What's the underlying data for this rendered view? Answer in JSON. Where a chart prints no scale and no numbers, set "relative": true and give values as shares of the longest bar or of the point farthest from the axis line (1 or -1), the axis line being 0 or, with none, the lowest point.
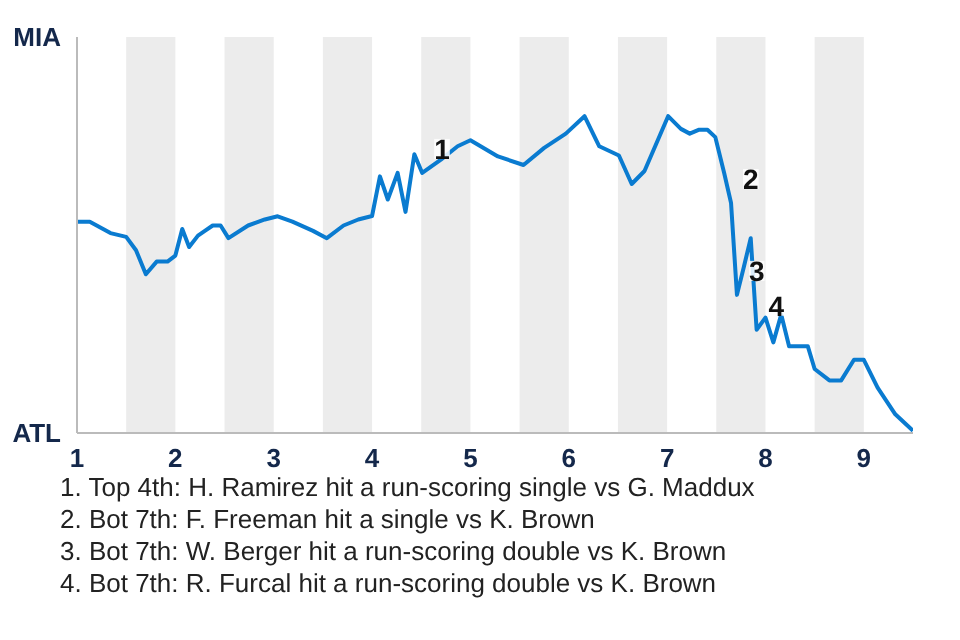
{
  "chart_data": {
    "type": "line",
    "relative": true,
    "x": [
      1.0,
      1.13,
      1.34,
      1.5,
      1.6,
      1.7,
      1.81,
      1.92,
      2.0,
      2.07,
      2.14,
      2.23,
      2.3,
      2.38,
      2.46,
      2.54,
      2.74,
      2.91,
      3.04,
      3.19,
      3.4,
      3.54,
      3.71,
      3.86,
      4.0,
      4.08,
      4.16,
      4.26,
      4.34,
      4.43,
      4.51,
      4.7,
      4.87,
      5.0,
      5.28,
      5.54,
      5.75,
      5.97,
      6.16,
      6.31,
      6.51,
      6.64,
      6.77,
      7.01,
      7.14,
      7.23,
      7.32,
      7.41,
      7.49,
      7.58,
      7.65,
      7.71,
      7.78,
      7.85,
      7.91,
      8.0,
      8.08,
      8.16,
      8.24,
      8.43,
      8.5,
      8.65,
      8.77,
      8.9,
      9.0,
      9.14,
      9.32,
      9.5
    ],
    "series": [
      {
        "color": "#0a7bd0",
        "values": [
          0.667,
          0.667,
          0.631,
          0.619,
          0.577,
          0.501,
          0.541,
          0.541,
          0.56,
          0.644,
          0.587,
          0.623,
          0.638,
          0.655,
          0.655,
          0.615,
          0.655,
          0.674,
          0.684,
          0.667,
          0.638,
          0.615,
          0.655,
          0.674,
          0.685,
          0.81,
          0.737,
          0.821,
          0.698,
          0.88,
          0.821,
          0.863,
          0.905,
          0.924,
          0.873,
          0.846,
          0.9,
          0.945,
          1,
          0.905,
          0.876,
          0.786,
          0.827,
          1,
          0.96,
          0.945,
          0.957,
          0.957,
          0.934,
          0.821,
          0.726,
          0.436,
          0.524,
          0.615,
          0.326,
          0.364,
          0.286,
          0.374,
          0.274,
          0.274,
          0.202,
          0.166,
          0.166,
          0.231,
          0.231,
          0.143,
          0.059,
          0.007
        ]
      }
    ],
    "xlim": [
      1,
      9.5
    ],
    "xticks": [
      {
        "value": 1,
        "label": "1"
      },
      {
        "value": 2,
        "label": "2"
      },
      {
        "value": 3,
        "label": "3"
      },
      {
        "value": 4,
        "label": "4"
      },
      {
        "value": 5,
        "label": "5"
      },
      {
        "value": 6,
        "label": "6"
      },
      {
        "value": 7,
        "label": "7"
      },
      {
        "value": 8,
        "label": "8"
      },
      {
        "value": 9,
        "label": "9"
      }
    ],
    "bands": [
      {
        "axis": "x",
        "from": 1.5,
        "to": 2,
        "color": "#ececec"
      },
      {
        "axis": "x",
        "from": 2.5,
        "to": 3,
        "color": "#ececec"
      },
      {
        "axis": "x",
        "from": 3.5,
        "to": 4,
        "color": "#ececec"
      },
      {
        "axis": "x",
        "from": 4.5,
        "to": 5,
        "color": "#ececec"
      },
      {
        "axis": "x",
        "from": 5.5,
        "to": 6,
        "color": "#ececec"
      },
      {
        "axis": "x",
        "from": 6.5,
        "to": 7,
        "color": "#ececec"
      },
      {
        "axis": "x",
        "from": 7.5,
        "to": 8,
        "color": "#ececec"
      },
      {
        "axis": "x",
        "from": 8.5,
        "to": 9,
        "color": "#ececec"
      }
    ],
    "annotations": [
      "MIA",
      "ATL",
      {
        "text": "1",
        "x": 4.51,
        "y": 0.821
      },
      {
        "text": "2",
        "x": 7.65,
        "y": 0.726
      },
      {
        "text": "3",
        "x": 7.71,
        "y": 0.436
      },
      {
        "text": "4",
        "x": 7.91,
        "y": 0.326
      },
      "1. Top 4th: H. Ramirez hit a run-scoring single vs G. Maddux",
      "2. Bot 7th: F. Freeman hit a single vs K. Brown",
      "3. Bot 7th: W. Berger hit a run-scoring double vs K. Brown",
      "4. Bot 7th: R. Furcal hit a run-scoring double vs K. Brown"
    ]
  }
}
